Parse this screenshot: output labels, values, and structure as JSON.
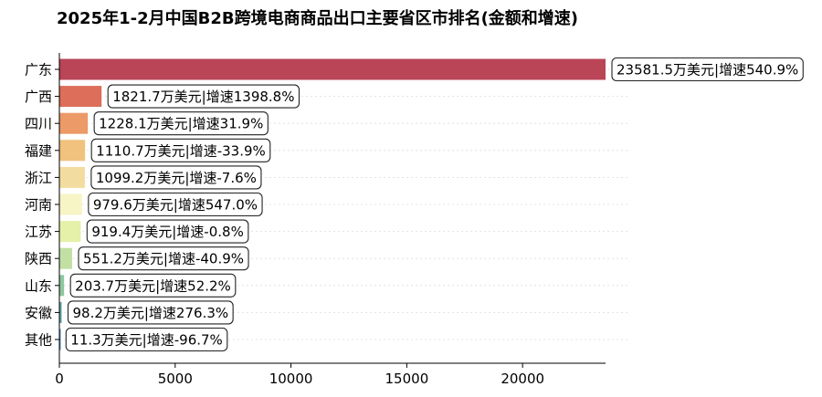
{
  "chart_data": {
    "type": "bar",
    "orientation": "horizontal",
    "title": "2025年1-2月中国B2B跨境电商商品出口主要省区市排名(金额和增速)",
    "categories": [
      "广东",
      "广西",
      "四川",
      "福建",
      "浙江",
      "河南",
      "江苏",
      "陕西",
      "山东",
      "安徽",
      "其他"
    ],
    "values": [
      23581.5,
      1821.7,
      1228.1,
      1110.7,
      1099.2,
      979.6,
      919.4,
      551.2,
      203.7,
      98.2,
      11.3
    ],
    "labels": [
      "23581.5万美元|增速540.9%",
      "1821.7万美元|增速1398.8%",
      "1228.1万美元|增速31.9%",
      "1110.7万美元|增速-33.9%",
      "1099.2万美元|增速-7.6%",
      "979.6万美元|增速547.0%",
      "919.4万美元|增速-0.8%",
      "551.2万美元|增速-40.9%",
      "203.7万美元|增速52.2%",
      "98.2万美元|增速276.3%",
      "11.3万美元|增速-96.7%"
    ],
    "colors": [
      "#b94557",
      "#dc6e5a",
      "#eb9a68",
      "#f0c27e",
      "#f3dca0",
      "#f7f4c6",
      "#e5f0a9",
      "#c2e0a4",
      "#8ec8a1",
      "#5ea4a3",
      "#4a8fbf"
    ],
    "xticks": [
      0,
      5000,
      10000,
      15000,
      20000
    ],
    "xlim": [
      0,
      23581.5
    ],
    "xlabel": "",
    "ylabel": "",
    "grid": "horizontal dotted",
    "legend": "none"
  }
}
